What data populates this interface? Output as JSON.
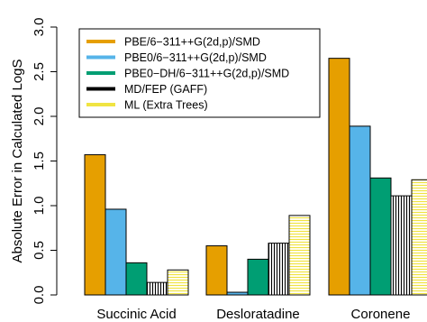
{
  "chart_data": {
    "type": "bar",
    "ylabel": "Absolute Error in Calculated LogS",
    "ylim": [
      0,
      3.0
    ],
    "yticks": [
      "0.0",
      "0.5",
      "1.0",
      "1.5",
      "2.0",
      "2.5",
      "3.0"
    ],
    "categories": [
      "Succinic Acid",
      "Desloratadine",
      "Coronene"
    ],
    "legend_position": "top-left",
    "grid": false,
    "series": [
      {
        "name": "PBE/6−311++G(2d,p)/SMD",
        "color": "#E69F00",
        "fill": "solid",
        "values": [
          1.57,
          0.55,
          2.65
        ]
      },
      {
        "name": "PBE0/6−311++G(2d,p)/SMD",
        "color": "#56B4E9",
        "fill": "solid",
        "values": [
          0.96,
          0.03,
          1.89
        ]
      },
      {
        "name": "PBE0−DH/6−311++G(2d,p)/SMD",
        "color": "#009E73",
        "fill": "solid",
        "values": [
          0.36,
          0.4,
          1.31
        ]
      },
      {
        "name": "MD/FEP (GAFF)",
        "color": "#000000",
        "fill": "vlines",
        "values": [
          0.14,
          0.58,
          1.11
        ]
      },
      {
        "name": "ML (Extra Trees)",
        "color": "#F0E442",
        "fill": "hlines",
        "values": [
          0.28,
          0.89,
          1.29
        ]
      }
    ]
  }
}
